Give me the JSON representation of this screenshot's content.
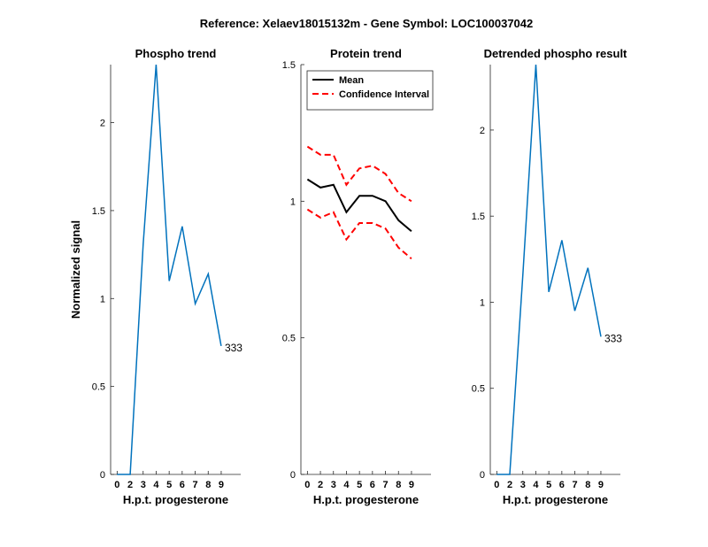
{
  "figure_title": "Reference:  Xelaev18015132m - Gene Symbol:  LOC100037042",
  "chart_data": [
    {
      "type": "line",
      "title": "Phospho trend",
      "xlabel": "H.p.t. progesterone",
      "ylabel": "Normalized signal",
      "xlim": [
        -0.5,
        9.5
      ],
      "ylim": [
        0,
        2.33
      ],
      "xticks": [
        0,
        2,
        3,
        4,
        5,
        6,
        7,
        8,
        9
      ],
      "xtick_positions": [
        0,
        1,
        2,
        3,
        4,
        5,
        6,
        7,
        8
      ],
      "yticks": [
        0,
        0.5,
        1,
        1.5,
        2
      ],
      "ytick_labels": [
        "0",
        "0.5",
        "1",
        "1.5",
        "2"
      ],
      "series": [
        {
          "name": "333",
          "color": "#0072BD",
          "x": [
            0,
            1,
            2,
            3,
            4,
            5,
            6,
            7,
            8
          ],
          "y": [
            0,
            0,
            1.31,
            2.33,
            1.1,
            1.41,
            0.97,
            1.14,
            0.73
          ]
        }
      ],
      "annotation": "333"
    },
    {
      "type": "line",
      "title": "Protein trend",
      "xlabel": "H.p.t. progesterone",
      "ylabel": "",
      "xlim": [
        -0.5,
        9.5
      ],
      "ylim": [
        0,
        1.5
      ],
      "xticks": [
        0,
        2,
        3,
        4,
        5,
        6,
        7,
        8,
        9
      ],
      "xtick_positions": [
        0,
        1,
        2,
        3,
        4,
        5,
        6,
        7,
        8
      ],
      "yticks": [
        0,
        0.5,
        1,
        1.5
      ],
      "ytick_labels": [
        "0",
        "0.5",
        "1",
        "1.5"
      ],
      "legend_position": "top-left",
      "series": [
        {
          "name": "Mean",
          "color": "#000000",
          "style": "solid",
          "x": [
            0,
            1,
            2,
            3,
            4,
            5,
            6,
            7,
            8
          ],
          "y": [
            1.08,
            1.05,
            1.06,
            0.96,
            1.02,
            1.02,
            1.0,
            0.93,
            0.89
          ]
        },
        {
          "name": "Confidence Interval",
          "color": "#FF0000",
          "style": "dashed",
          "x": [
            0,
            1,
            2,
            3,
            4,
            5,
            6,
            7,
            8
          ],
          "y": [
            1.2,
            1.17,
            1.17,
            1.06,
            1.12,
            1.13,
            1.1,
            1.03,
            1.0
          ]
        },
        {
          "name": "Confidence Interval (lower)",
          "legend": false,
          "color": "#FF0000",
          "style": "dashed",
          "x": [
            0,
            1,
            2,
            3,
            4,
            5,
            6,
            7,
            8
          ],
          "y": [
            0.97,
            0.94,
            0.96,
            0.86,
            0.92,
            0.92,
            0.9,
            0.83,
            0.79
          ]
        }
      ]
    },
    {
      "type": "line",
      "title": "Detrended phospho result",
      "xlabel": "H.p.t. progesterone",
      "ylabel": "",
      "xlim": [
        -0.5,
        9.5
      ],
      "ylim": [
        0,
        2.38
      ],
      "xticks": [
        0,
        2,
        3,
        4,
        5,
        6,
        7,
        8,
        9
      ],
      "xtick_positions": [
        0,
        1,
        2,
        3,
        4,
        5,
        6,
        7,
        8
      ],
      "yticks": [
        0,
        0.5,
        1,
        1.5,
        2
      ],
      "ytick_labels": [
        "0",
        "0.5",
        "1",
        "1.5",
        "2"
      ],
      "series": [
        {
          "name": "333",
          "color": "#0072BD",
          "x": [
            0,
            1,
            2,
            3,
            4,
            5,
            6,
            7,
            8
          ],
          "y": [
            0,
            0,
            1.16,
            2.38,
            1.06,
            1.36,
            0.95,
            1.2,
            0.8
          ]
        }
      ],
      "annotation": "333"
    }
  ]
}
